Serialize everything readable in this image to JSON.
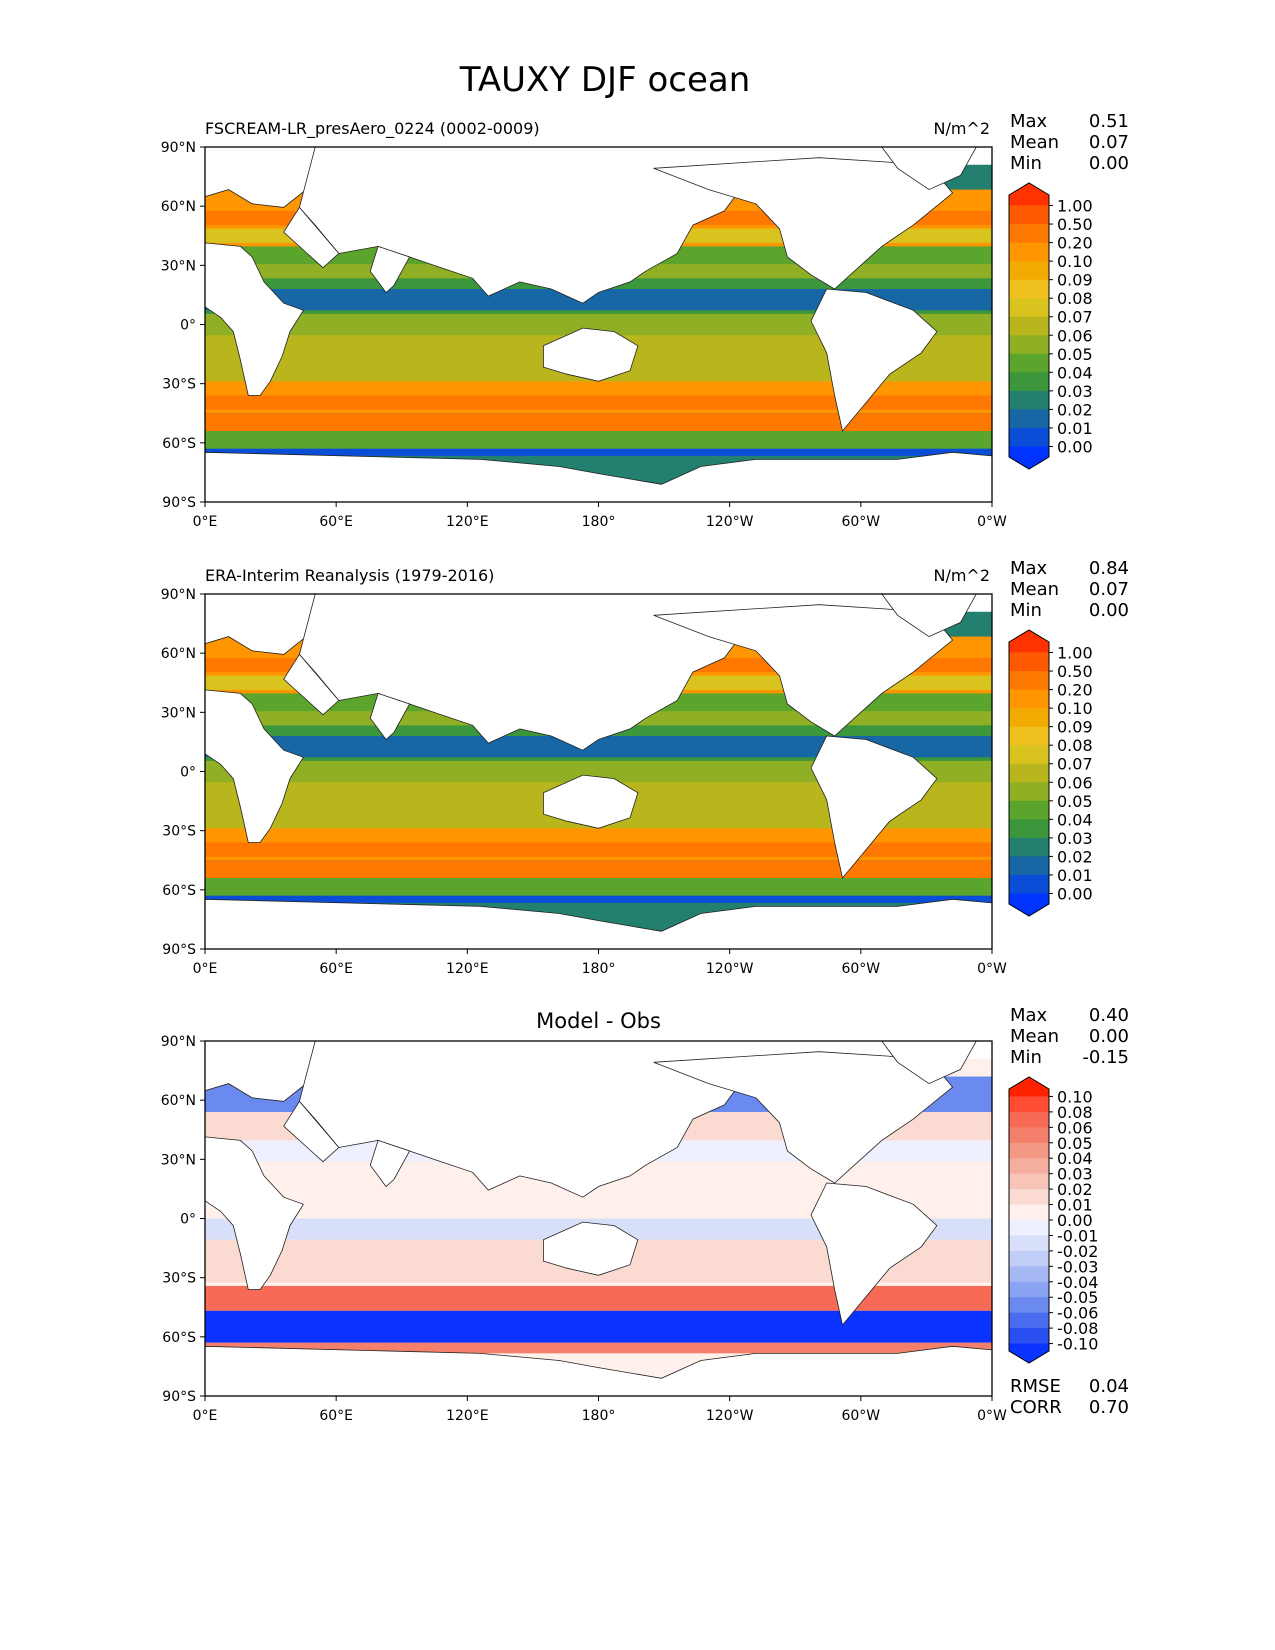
{
  "figure": {
    "title": "TAUXY DJF ocean"
  },
  "chart_data": [
    {
      "type": "heatmap",
      "left_title": "FSCREAM-LR_presAero_0224 (0002-0009)",
      "center_title": "",
      "units": "N/m^2",
      "stats": [
        {
          "label": "Max",
          "value": "0.51"
        },
        {
          "label": "Mean",
          "value": "0.07"
        },
        {
          "label": "Min",
          "value": "0.00"
        }
      ],
      "extra_stats": [],
      "colorbar": "seq",
      "x_ticks": [
        "0°E",
        "60°E",
        "120°E",
        "180°",
        "120°W",
        "60°W",
        "0°W"
      ],
      "y_ticks": [
        "90°N",
        "60°N",
        "30°N",
        "0°",
        "30°S",
        "60°S",
        "90°S"
      ],
      "xlim": [
        0,
        360
      ],
      "ylim": [
        -90,
        90
      ]
    },
    {
      "type": "heatmap",
      "left_title": "ERA-Interim Reanalysis (1979-2016)",
      "center_title": "",
      "units": "N/m^2",
      "stats": [
        {
          "label": "Max",
          "value": "0.84"
        },
        {
          "label": "Mean",
          "value": "0.07"
        },
        {
          "label": "Min",
          "value": "0.00"
        }
      ],
      "extra_stats": [],
      "colorbar": "seq",
      "x_ticks": [
        "0°E",
        "60°E",
        "120°E",
        "180°",
        "120°W",
        "60°W",
        "0°W"
      ],
      "y_ticks": [
        "90°N",
        "60°N",
        "30°N",
        "0°",
        "30°S",
        "60°S",
        "90°S"
      ],
      "xlim": [
        0,
        360
      ],
      "ylim": [
        -90,
        90
      ]
    },
    {
      "type": "heatmap",
      "left_title": "",
      "center_title": "Model - Obs",
      "units": "",
      "stats": [
        {
          "label": "Max",
          "value": "0.40"
        },
        {
          "label": "Mean",
          "value": "0.00"
        },
        {
          "label": "Min",
          "value": "-0.15"
        }
      ],
      "extra_stats": [
        {
          "label": "RMSE",
          "value": "0.04"
        },
        {
          "label": "CORR",
          "value": "0.70"
        }
      ],
      "colorbar": "div",
      "x_ticks": [
        "0°E",
        "60°E",
        "120°E",
        "180°",
        "120°W",
        "60°W",
        "0°W"
      ],
      "y_ticks": [
        "90°N",
        "60°N",
        "30°N",
        "0°",
        "30°S",
        "60°S",
        "90°S"
      ],
      "xlim": [
        0,
        360
      ],
      "ylim": [
        -90,
        90
      ]
    }
  ],
  "colorbars": {
    "seq": {
      "labels": [
        "1.00",
        "0.50",
        "0.20",
        "0.10",
        "0.09",
        "0.08",
        "0.07",
        "0.06",
        "0.05",
        "0.04",
        "0.03",
        "0.02",
        "0.01",
        "0.00"
      ],
      "colors": [
        "#ff3300",
        "#ff5a00",
        "#ff7800",
        "#ff9600",
        "#f2a900",
        "#f0c020",
        "#d9c31f",
        "#b8b61c",
        "#8fb025",
        "#5ba52d",
        "#3b963c",
        "#237f6e",
        "#1766a5",
        "#0a4dd6",
        "#0033ff"
      ]
    },
    "div": {
      "labels": [
        "0.10",
        "0.08",
        "0.06",
        "0.05",
        "0.04",
        "0.03",
        "0.02",
        "0.01",
        "0.00",
        "-0.01",
        "-0.02",
        "-0.03",
        "-0.04",
        "-0.05",
        "-0.06",
        "-0.08",
        "-0.10"
      ],
      "colors": [
        "#ff2200",
        "#ff4c33",
        "#f76a55",
        "#f4806c",
        "#f39885",
        "#f5ae9e",
        "#f8c4b8",
        "#fbdad2",
        "#fff0ec",
        "#eef0ff",
        "#d8dff8",
        "#c0cdf7",
        "#a6b9f5",
        "#8aa3f3",
        "#6b8af0",
        "#4a6cef",
        "#2a4ff0",
        "#0a33ff"
      ]
    }
  }
}
